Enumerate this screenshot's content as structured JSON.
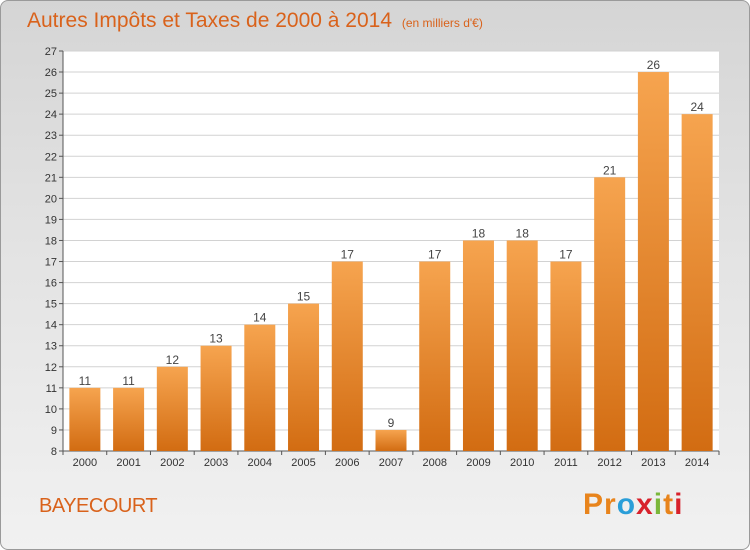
{
  "title": "Autres Impôts et Taxes de 2000 à 2014",
  "subtitle": "(en milliers d'€)",
  "town": "BAYECOURT",
  "logo": {
    "text": "Proxiti",
    "letters": [
      "P",
      "r",
      "o",
      "x",
      "i",
      "t",
      "i"
    ],
    "colors": [
      "#e8841c",
      "#e8841c",
      "#2a9ed8",
      "#d8212b",
      "#7ab73a",
      "#e8841c",
      "#d8212b"
    ]
  },
  "colors": {
    "bar_top": "#f6a44f",
    "bar_bottom": "#d26c12",
    "title": "#d9621b"
  },
  "chart_data": {
    "type": "bar",
    "title": "Autres Impôts et Taxes de 2000 à 2014",
    "subtitle": "(en milliers d'€)",
    "categories": [
      "2000",
      "2001",
      "2002",
      "2003",
      "2004",
      "2005",
      "2006",
      "2007",
      "2008",
      "2009",
      "2010",
      "2011",
      "2012",
      "2013",
      "2014"
    ],
    "values": [
      11,
      11,
      12,
      13,
      14,
      15,
      17,
      9,
      17,
      18,
      18,
      17,
      21,
      26,
      24
    ],
    "ylim": [
      8,
      27
    ],
    "yticks": [
      8,
      9,
      10,
      11,
      12,
      13,
      14,
      15,
      16,
      17,
      18,
      19,
      20,
      21,
      22,
      23,
      24,
      25,
      26,
      27
    ],
    "grid": true
  }
}
